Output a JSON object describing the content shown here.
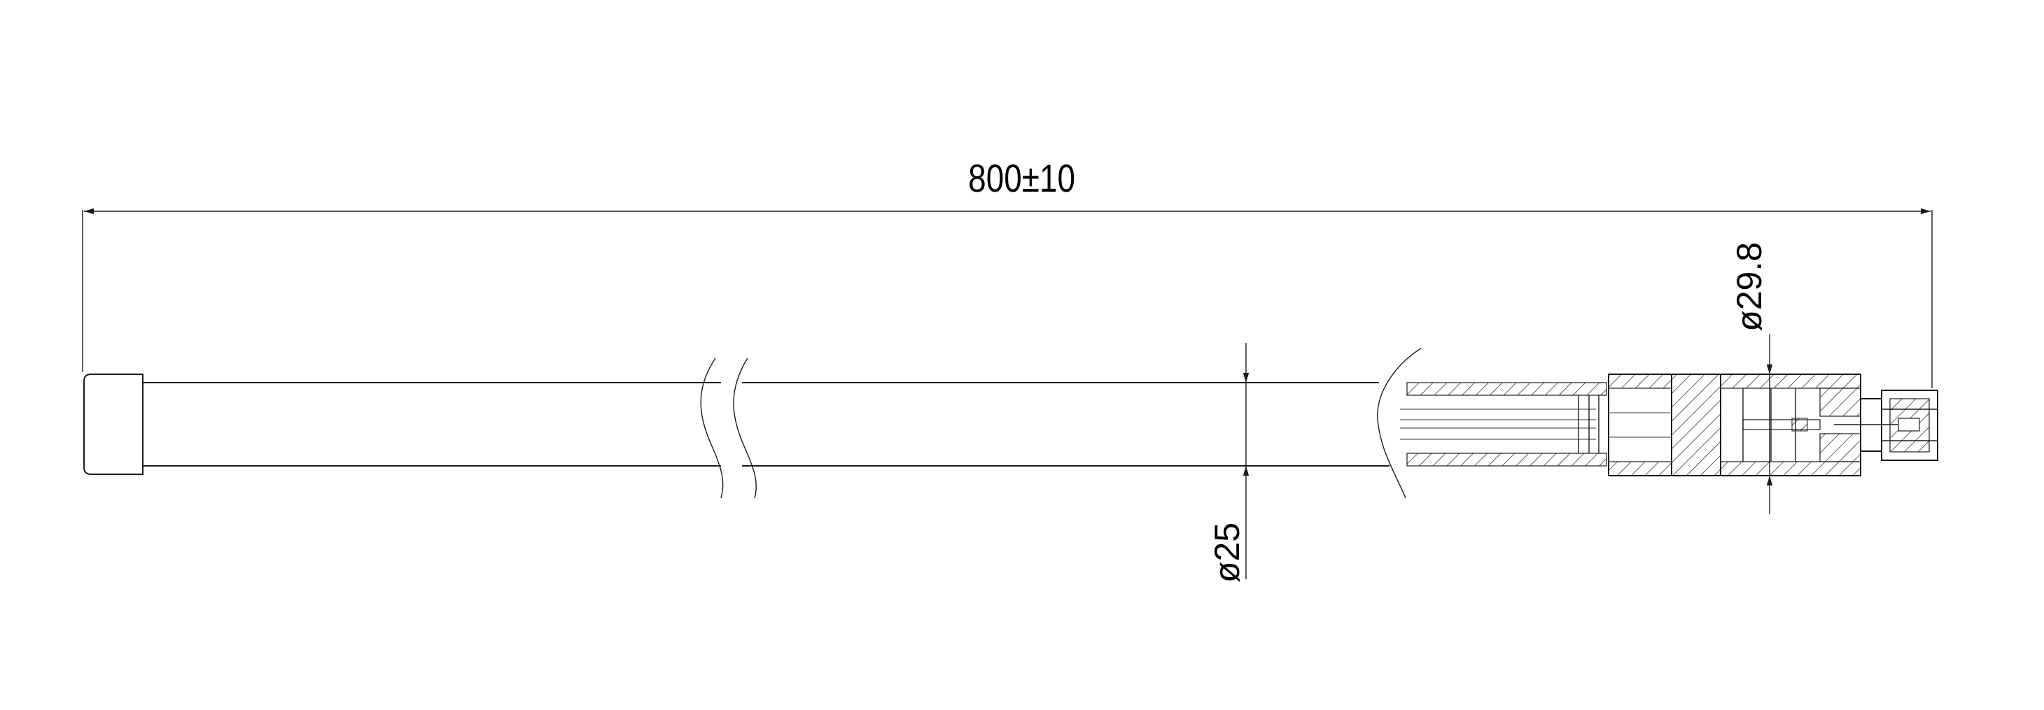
{
  "drawing": {
    "dimensions": {
      "overall_length": "800±10",
      "tube_diameter": "ø25",
      "base_diameter": "ø29.8"
    }
  }
}
